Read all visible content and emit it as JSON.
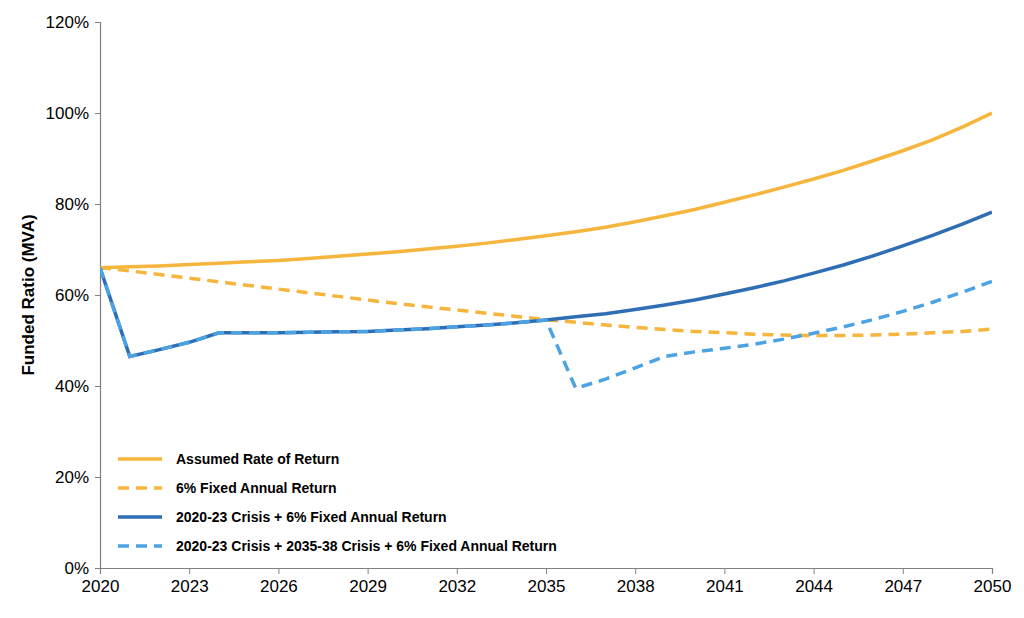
{
  "chart_data": {
    "type": "line",
    "y_label": "Funded Ratio (MVA)",
    "x": [
      2020,
      2021,
      2022,
      2023,
      2024,
      2025,
      2026,
      2027,
      2028,
      2029,
      2030,
      2031,
      2032,
      2033,
      2034,
      2035,
      2036,
      2037,
      2038,
      2039,
      2040,
      2041,
      2042,
      2043,
      2044,
      2045,
      2046,
      2047,
      2048,
      2049,
      2050
    ],
    "xlim": [
      2020,
      2050
    ],
    "xticks": [
      2020,
      2023,
      2026,
      2029,
      2032,
      2035,
      2038,
      2041,
      2044,
      2047,
      2050
    ],
    "ylim": [
      0,
      120
    ],
    "yticks": [
      {
        "value": 0,
        "label": "0%"
      },
      {
        "value": 20,
        "label": "20%"
      },
      {
        "value": 40,
        "label": "40%"
      },
      {
        "value": 60,
        "label": "60%"
      },
      {
        "value": 80,
        "label": "80%"
      },
      {
        "value": 100,
        "label": "100%"
      },
      {
        "value": 120,
        "label": "120%"
      }
    ],
    "grid": false,
    "legend": "lower left",
    "series": [
      {
        "name": "Assumed Rate of Return",
        "color": "#f6b53c",
        "line_style": "solid",
        "values": [
          66.0,
          66.2,
          66.4,
          66.7,
          67.0,
          67.3,
          67.6,
          68.0,
          68.5,
          69.0,
          69.5,
          70.1,
          70.7,
          71.4,
          72.2,
          73.0,
          73.9,
          74.9,
          76.1,
          77.4,
          78.8,
          80.4,
          82.0,
          83.7,
          85.5,
          87.4,
          89.5,
          91.7,
          94.1,
          96.9,
          100.0
        ]
      },
      {
        "name": "6% Fixed Annual Return",
        "color": "#f6b53c",
        "line_style": "dashed",
        "values": [
          66.0,
          65.3,
          64.5,
          63.7,
          62.9,
          62.1,
          61.3,
          60.5,
          59.7,
          58.9,
          58.1,
          57.4,
          56.7,
          56.0,
          55.3,
          54.6,
          54.0,
          53.4,
          52.9,
          52.4,
          52.0,
          51.7,
          51.4,
          51.2,
          51.1,
          51.1,
          51.2,
          51.4,
          51.7,
          52.0,
          52.5
        ]
      },
      {
        "name": "2020-23 Crisis + 6% Fixed Annual Return",
        "color": "#2f6eb5",
        "line_style": "solid",
        "values": [
          66.0,
          46.5,
          48.0,
          49.6,
          51.7,
          51.7,
          51.7,
          51.8,
          51.9,
          52.0,
          52.3,
          52.6,
          53.0,
          53.4,
          53.9,
          54.5,
          55.2,
          55.9,
          56.8,
          57.8,
          58.9,
          60.2,
          61.6,
          63.1,
          64.8,
          66.6,
          68.6,
          70.8,
          73.1,
          75.6,
          78.2
        ]
      },
      {
        "name": "2020-23 Crisis + 2035-38 Crisis + 6% Fixed Annual Return",
        "color": "#4ba3e3",
        "line_style": "dashed",
        "values": [
          66.0,
          46.5,
          48.0,
          49.6,
          51.7,
          51.7,
          51.7,
          51.8,
          51.9,
          52.0,
          52.3,
          52.6,
          53.0,
          53.4,
          53.9,
          54.5,
          39.5,
          41.5,
          44.0,
          46.5,
          47.5,
          48.3,
          49.2,
          50.3,
          51.6,
          53.0,
          54.6,
          56.4,
          58.4,
          60.6,
          63.0
        ]
      }
    ]
  }
}
